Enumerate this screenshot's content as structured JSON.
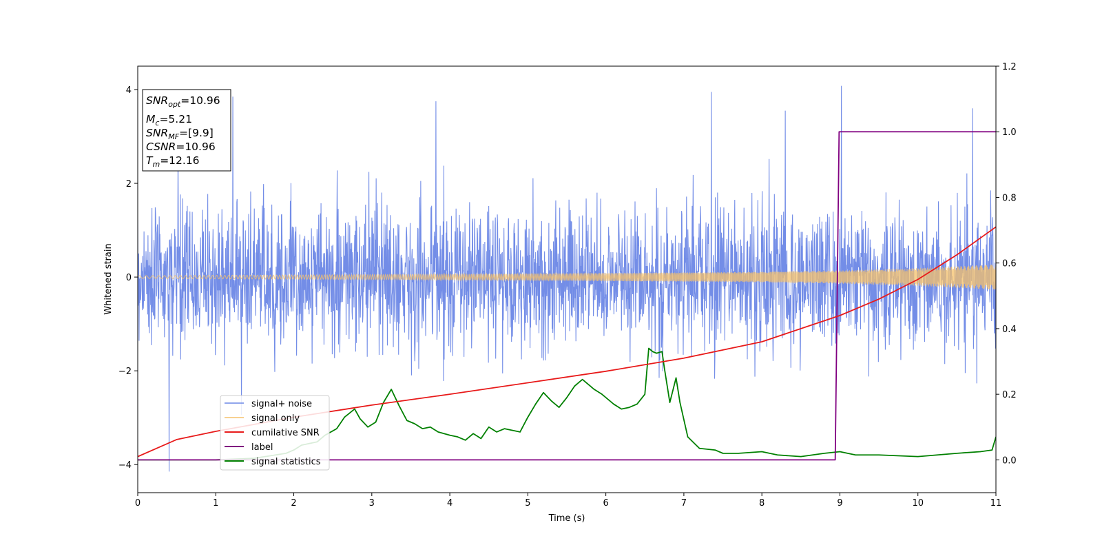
{
  "chart_data": {
    "type": "line",
    "xlabel": "Time (s)",
    "ylabel": "Whitened strain",
    "xlim": [
      0,
      11
    ],
    "ylim": [
      -4.6,
      4.5
    ],
    "y2lim": [
      -0.1,
      1.2
    ],
    "x_ticks": [
      "0",
      "1",
      "2",
      "3",
      "4",
      "5",
      "6",
      "7",
      "8",
      "9",
      "10",
      "11"
    ],
    "y_ticks": [
      "−4",
      "−2",
      "0",
      "2",
      "4"
    ],
    "y2_ticks": [
      "0.0",
      "0.2",
      "0.4",
      "0.6",
      "0.8",
      "1.0",
      "1.2"
    ],
    "grid": false,
    "legend_position": "lower-left",
    "annotation": [
      {
        "name": "SNR",
        "sub": "opt",
        "value": "=10.96"
      },
      {
        "name": "M",
        "sub": "c",
        "value": "=5.21"
      },
      {
        "name": "SNR",
        "sub": "MF",
        "value": "=[9.9]"
      },
      {
        "name": "CSNR",
        "sub": "",
        "value": "=10.96"
      },
      {
        "name": "T",
        "sub": "m",
        "value": "=12.16"
      }
    ],
    "series": [
      {
        "name": "signal+ noise",
        "color": "#6b87e6",
        "axis": "left",
        "description": "noisy whitened strain around 0, spread about ±1.3 with spikes to ±4",
        "amplitude_std": 0.75,
        "peaks": [
          [
            0.4,
            -4.15
          ],
          [
            1.22,
            3.85
          ],
          [
            3.82,
            3.75
          ],
          [
            7.35,
            3.95
          ],
          [
            8.3,
            3.55
          ],
          [
            9.02,
            4.08
          ],
          [
            10.7,
            3.6
          ]
        ]
      },
      {
        "name": "signal only",
        "color": "#f5c26b",
        "axis": "left",
        "description": "chirp oscillation with growing envelope",
        "envelope": {
          "x": [
            0,
            4,
            8,
            9,
            10,
            11
          ],
          "y": [
            0.03,
            0.06,
            0.11,
            0.14,
            0.19,
            0.27
          ]
        }
      },
      {
        "name": "cumilative SNR",
        "color": "#e81a1a",
        "axis": "right",
        "x": [
          0,
          0.5,
          1,
          2,
          3,
          4,
          5,
          6,
          7,
          8,
          9,
          9.5,
          10,
          10.5,
          11
        ],
        "y": [
          0.01,
          0.062,
          0.087,
          0.13,
          0.167,
          0.2,
          0.235,
          0.27,
          0.31,
          0.36,
          0.44,
          0.49,
          0.55,
          0.625,
          0.71
        ]
      },
      {
        "name": "label",
        "color": "#800080",
        "axis": "right",
        "x": [
          0,
          8.94,
          8.99,
          11
        ],
        "y": [
          0.0,
          0.0,
          1.0,
          1.0
        ]
      },
      {
        "name": "signal statistics",
        "color": "#008000",
        "axis": "right",
        "x": [
          0,
          1,
          1.5,
          1.9,
          2.0,
          2.1,
          2.3,
          2.4,
          2.55,
          2.65,
          2.78,
          2.85,
          2.95,
          3.05,
          3.15,
          3.25,
          3.35,
          3.45,
          3.55,
          3.65,
          3.75,
          3.85,
          4.0,
          4.1,
          4.2,
          4.3,
          4.4,
          4.5,
          4.6,
          4.7,
          4.9,
          5.0,
          5.1,
          5.2,
          5.3,
          5.4,
          5.5,
          5.6,
          5.65,
          5.7,
          5.75,
          5.85,
          5.95,
          6.1,
          6.2,
          6.3,
          6.4,
          6.5,
          6.55,
          6.6,
          6.65,
          6.72,
          6.75,
          6.82,
          6.9,
          6.95,
          7.05,
          7.2,
          7.4,
          7.5,
          7.7,
          8.0,
          8.2,
          8.5,
          8.8,
          9.0,
          9.2,
          9.5,
          10.0,
          10.5,
          10.8,
          10.95,
          11.0
        ],
        "y": [
          0.0,
          0.0,
          0.005,
          0.02,
          0.03,
          0.045,
          0.055,
          0.075,
          0.095,
          0.13,
          0.155,
          0.125,
          0.1,
          0.115,
          0.175,
          0.215,
          0.165,
          0.12,
          0.11,
          0.095,
          0.1,
          0.085,
          0.075,
          0.07,
          0.06,
          0.08,
          0.065,
          0.1,
          0.085,
          0.095,
          0.085,
          0.13,
          0.17,
          0.205,
          0.18,
          0.16,
          0.19,
          0.225,
          0.235,
          0.245,
          0.235,
          0.215,
          0.2,
          0.17,
          0.155,
          0.16,
          0.17,
          0.2,
          0.34,
          0.33,
          0.325,
          0.33,
          0.28,
          0.175,
          0.25,
          0.175,
          0.07,
          0.035,
          0.03,
          0.02,
          0.02,
          0.025,
          0.015,
          0.01,
          0.02,
          0.025,
          0.015,
          0.015,
          0.01,
          0.02,
          0.025,
          0.03,
          0.07
        ]
      }
    ]
  }
}
